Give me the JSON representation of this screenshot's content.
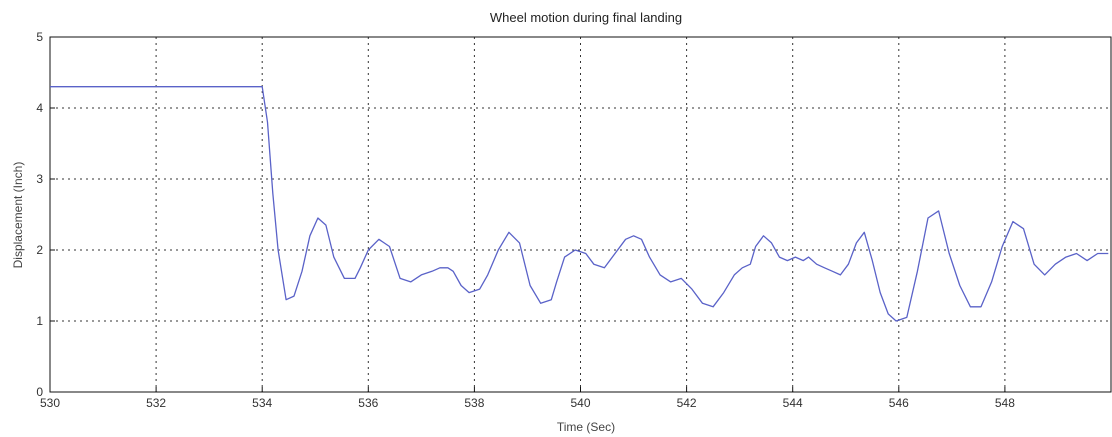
{
  "chart_data": {
    "type": "line",
    "title": "Wheel motion during final landing",
    "xlabel": "Time (Sec)",
    "ylabel": "Displacement (Inch)",
    "xlim": [
      530,
      550
    ],
    "ylim": [
      0,
      5
    ],
    "x_ticks": [
      530,
      532,
      534,
      536,
      538,
      540,
      542,
      544,
      546,
      548
    ],
    "x_tick_labels": [
      "530",
      "532",
      "534",
      "536",
      "538",
      "540",
      "542",
      "544",
      "546",
      "548"
    ],
    "y_ticks": [
      0,
      1,
      2,
      3,
      4,
      5
    ],
    "y_tick_labels": [
      "0",
      "1",
      "2",
      "3",
      "4",
      "5"
    ],
    "grid": true,
    "series": [
      {
        "color": "#5a62c8",
        "x": [
          530.0,
          534.0,
          534.1,
          534.2,
          534.3,
          534.45,
          534.6,
          534.75,
          534.9,
          535.05,
          535.2,
          535.35,
          535.55,
          535.75,
          535.85,
          536.0,
          536.2,
          536.4,
          536.6,
          536.8,
          537.0,
          537.2,
          537.35,
          537.5,
          537.6,
          537.75,
          537.9,
          538.1,
          538.25,
          538.45,
          538.65,
          538.85,
          539.05,
          539.25,
          539.45,
          539.55,
          539.7,
          539.9,
          540.1,
          540.25,
          540.45,
          540.65,
          540.85,
          541.0,
          541.15,
          541.3,
          541.5,
          541.7,
          541.9,
          542.1,
          542.3,
          542.5,
          542.7,
          542.9,
          543.05,
          543.2,
          543.3,
          543.45,
          543.6,
          543.75,
          543.9,
          544.05,
          544.2,
          544.3,
          544.45,
          544.6,
          544.75,
          544.9,
          545.05,
          545.2,
          545.35,
          545.5,
          545.65,
          545.8,
          545.95,
          546.15,
          546.35,
          546.55,
          546.75,
          546.95,
          547.15,
          547.35,
          547.55,
          547.75,
          547.95,
          548.15,
          548.35,
          548.55,
          548.75,
          548.95,
          549.15,
          549.35,
          549.55,
          549.75,
          549.95
        ],
        "y": [
          4.3,
          4.3,
          3.8,
          2.8,
          2.0,
          1.3,
          1.35,
          1.7,
          2.2,
          2.45,
          2.35,
          1.9,
          1.6,
          1.6,
          1.75,
          2.0,
          2.15,
          2.05,
          1.6,
          1.55,
          1.65,
          1.7,
          1.75,
          1.75,
          1.7,
          1.5,
          1.4,
          1.45,
          1.65,
          2.0,
          2.25,
          2.1,
          1.5,
          1.25,
          1.3,
          1.55,
          1.9,
          2.0,
          1.95,
          1.8,
          1.75,
          1.95,
          2.15,
          2.2,
          2.15,
          1.9,
          1.65,
          1.55,
          1.6,
          1.45,
          1.25,
          1.2,
          1.4,
          1.65,
          1.75,
          1.8,
          2.05,
          2.2,
          2.1,
          1.9,
          1.85,
          1.9,
          1.85,
          1.9,
          1.8,
          1.75,
          1.7,
          1.65,
          1.8,
          2.1,
          2.25,
          1.85,
          1.4,
          1.1,
          1.0,
          1.05,
          1.7,
          2.45,
          2.55,
          1.95,
          1.5,
          1.2,
          1.2,
          1.55,
          2.05,
          2.4,
          2.3,
          1.8,
          1.65,
          1.8,
          1.9,
          1.95,
          1.85,
          1.95,
          1.95
        ]
      }
    ]
  }
}
